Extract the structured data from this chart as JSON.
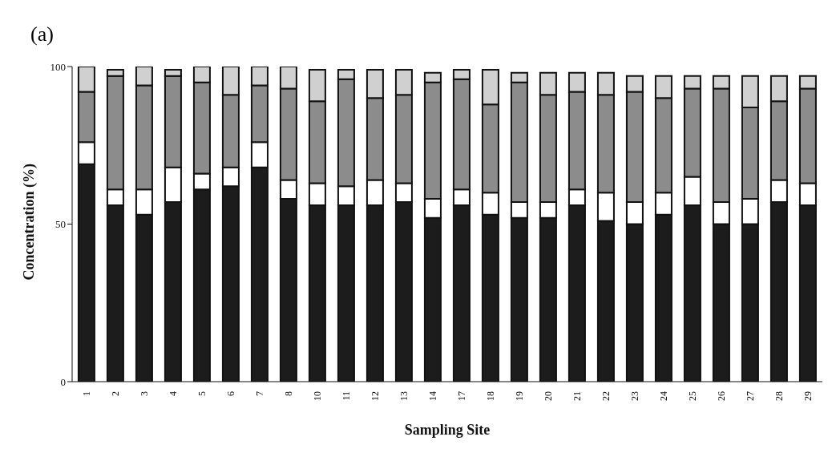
{
  "chart_data": {
    "type": "bar",
    "title": "(a)",
    "xlabel": "Sampling Site",
    "ylabel": "Concentration (%)",
    "stacked": true,
    "categories": [
      "1",
      "2",
      "3",
      "4",
      "5",
      "6",
      "7",
      "8",
      "10",
      "11",
      "12",
      "13",
      "14",
      "17",
      "18",
      "19",
      "20",
      "21",
      "22",
      "23",
      "24",
      "25",
      "26",
      "27",
      "28",
      "29"
    ],
    "series": [
      {
        "color": "#1c1c1c",
        "values": [
          69,
          56,
          53,
          57,
          61,
          62,
          68,
          58,
          56,
          56,
          56,
          57,
          52,
          56,
          53,
          52,
          52,
          56,
          51,
          50,
          53,
          56,
          50,
          50,
          57,
          56
        ]
      },
      {
        "color": "#ffffff",
        "values": [
          7,
          5,
          8,
          11,
          5,
          6,
          8,
          6,
          7,
          6,
          8,
          6,
          6,
          5,
          7,
          5,
          5,
          5,
          9,
          7,
          7,
          9,
          7,
          8,
          7,
          7
        ]
      },
      {
        "color": "#8c8c8c",
        "values": [
          16,
          36,
          33,
          29,
          29,
          23,
          18,
          29,
          26,
          34,
          26,
          28,
          37,
          35,
          28,
          38,
          34,
          31,
          31,
          35,
          30,
          28,
          36,
          29,
          25,
          30
        ]
      },
      {
        "color": "#d0d0d0",
        "values": [
          8,
          2,
          6,
          2,
          5,
          9,
          6,
          7,
          10,
          3,
          9,
          8,
          3,
          3,
          11,
          3,
          7,
          6,
          7,
          5,
          7,
          4,
          4,
          10,
          8,
          4
        ]
      }
    ],
    "ylim": [
      0,
      100
    ],
    "yticks": [
      0,
      50,
      100
    ],
    "grid": false,
    "legend": false
  }
}
